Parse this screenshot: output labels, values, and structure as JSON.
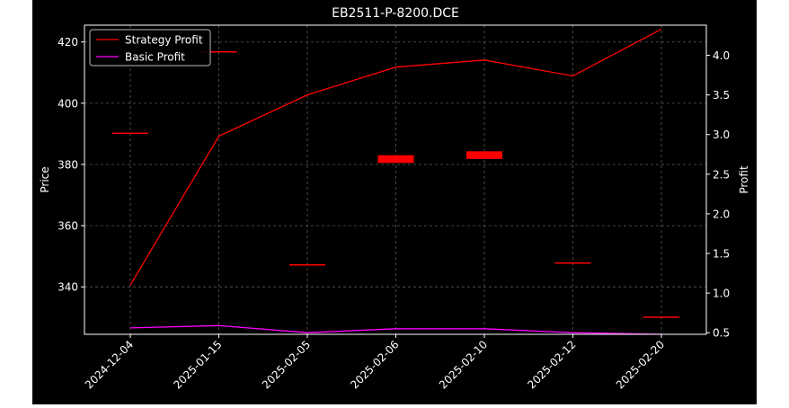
{
  "chart_data": {
    "type": "line",
    "title": "EB2511-P-8200.DCE",
    "xlabel": "",
    "ylabel_left": "Price",
    "ylabel_right": "Profit",
    "categories": [
      "2024-12-04",
      "2025-01-15",
      "2025-02-05",
      "2025-02-06",
      "2025-02-10",
      "2025-02-12",
      "2025-02-20"
    ],
    "y_left": {
      "range": [
        324.5,
        425.5
      ],
      "ticks": [
        340,
        360,
        380,
        400,
        420
      ]
    },
    "y_right": {
      "range": [
        0.48,
        4.38
      ],
      "ticks": [
        0.5,
        1.0,
        1.5,
        2.0,
        2.5,
        3.0,
        3.5,
        4.0
      ]
    },
    "candles": [
      {
        "date": "2024-12-04",
        "open": 390.4,
        "close": 390.4
      },
      {
        "date": "2025-01-15",
        "open": 417.0,
        "close": 417.0
      },
      {
        "date": "2025-02-05",
        "open": 347.4,
        "close": 347.4
      },
      {
        "date": "2025-02-06",
        "open": 383.0,
        "close": 380.5
      },
      {
        "date": "2025-02-10",
        "open": 384.3,
        "close": 381.8
      },
      {
        "date": "2025-02-12",
        "open": 348.0,
        "close": 348.0
      },
      {
        "date": "2025-02-20",
        "open": 330.3,
        "close": 330.3
      }
    ],
    "series": [
      {
        "name": "Strategy Profit",
        "axis": "right",
        "color": "#ff0000",
        "values": [
          1.1,
          2.98,
          3.5,
          3.85,
          3.94,
          3.74,
          4.33
        ]
      },
      {
        "name": "Basic Profit",
        "axis": "right",
        "color": "#ff00ff",
        "values": [
          0.56,
          0.59,
          0.5,
          0.55,
          0.55,
          0.5,
          0.48
        ]
      }
    ],
    "legend_position": "top-left",
    "grid": true,
    "colors": {
      "background": "#000000",
      "frame": "#ffffff",
      "grid": "#808080",
      "candle": "#ff0000"
    }
  }
}
